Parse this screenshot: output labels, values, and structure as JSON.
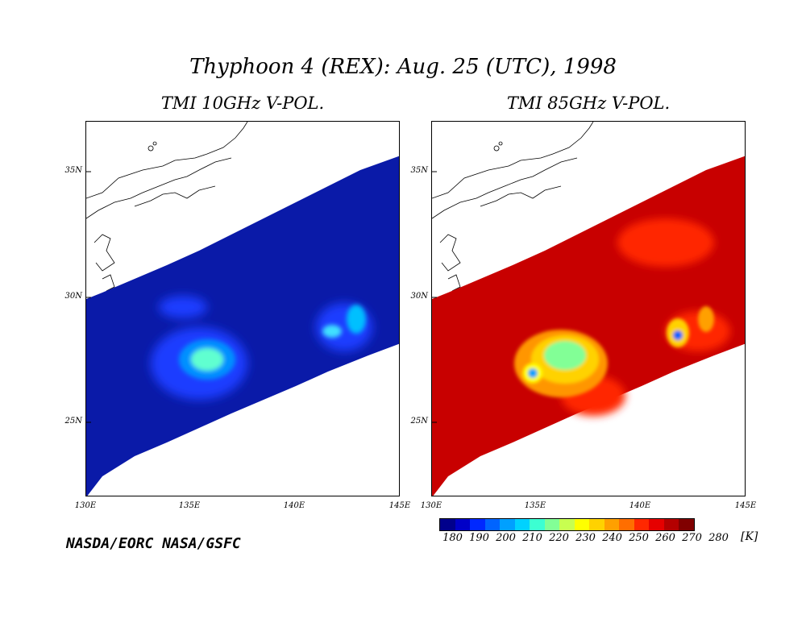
{
  "title": "Thyphoon 4 (REX): Aug. 25 (UTC), 1998",
  "panels": [
    {
      "title": "TMI 10GHz V-POL.",
      "channel": "10GHz",
      "background_color": "#0a1aa8"
    },
    {
      "title": "TMI 85GHz V-POL.",
      "channel": "85GHz",
      "background_color": "#c80000"
    }
  ],
  "lat_labels": [
    "35N",
    "30N",
    "25N"
  ],
  "lon_labels": [
    "130E",
    "135E",
    "140E",
    "145E"
  ],
  "credit": "NASDA/EORC NASA/GSFC",
  "colorbar": {
    "ticks": [
      "180",
      "190",
      "200",
      "210",
      "220",
      "230",
      "240",
      "250",
      "260",
      "270",
      "280"
    ],
    "unit": "[K]",
    "colors": [
      "#00008c",
      "#0000c8",
      "#0028ff",
      "#0064ff",
      "#00a0ff",
      "#00d2ff",
      "#3cffd2",
      "#82ff96",
      "#c8ff50",
      "#ffff00",
      "#ffd200",
      "#ffa000",
      "#ff6e00",
      "#ff2800",
      "#e60000",
      "#b40000",
      "#800000"
    ]
  }
}
